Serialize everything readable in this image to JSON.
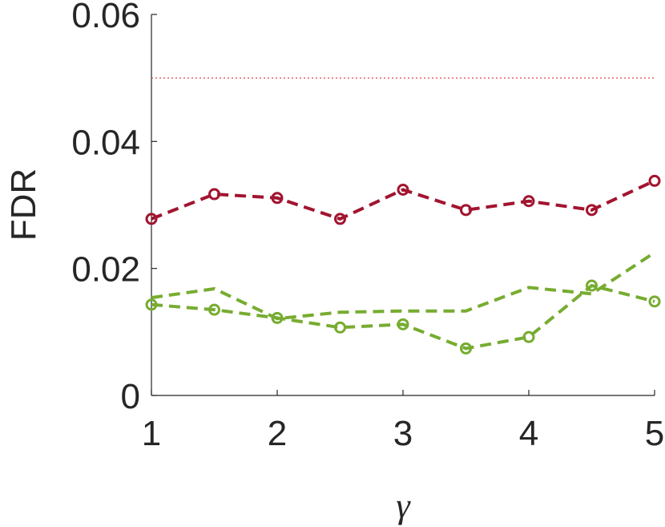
{
  "chart_data": {
    "type": "line",
    "xlabel": "γ",
    "ylabel": "FDR",
    "x": [
      1,
      1.5,
      2,
      2.5,
      3,
      3.5,
      4,
      4.5,
      5
    ],
    "series": [
      {
        "color": "#a2142f",
        "linestyle": "dashed",
        "marker": "circle",
        "values": [
          0.0278,
          0.0317,
          0.0311,
          0.0278,
          0.0324,
          0.0292,
          0.0306,
          0.0292,
          0.0338
        ]
      },
      {
        "color": "#77ac30",
        "linestyle": "dashed",
        "marker": "circle",
        "values": [
          0.0143,
          0.0135,
          0.0122,
          0.0107,
          0.0112,
          0.0074,
          0.0092,
          0.0173,
          0.0148
        ]
      },
      {
        "color": "#77ac30",
        "linestyle": "dashed",
        "marker": "none",
        "values": [
          0.0154,
          0.0168,
          0.0121,
          0.0131,
          0.0133,
          0.0133,
          0.017,
          0.016,
          0.0225
        ]
      }
    ],
    "hline": {
      "value": 0.05,
      "color": "#e03030",
      "linestyle": "dotted"
    },
    "xlim": [
      1,
      5
    ],
    "xticks": [
      1,
      2,
      3,
      4,
      5
    ],
    "ylim": [
      0,
      0.06
    ],
    "yticks": [
      0,
      0.02,
      0.04,
      0.06
    ]
  }
}
